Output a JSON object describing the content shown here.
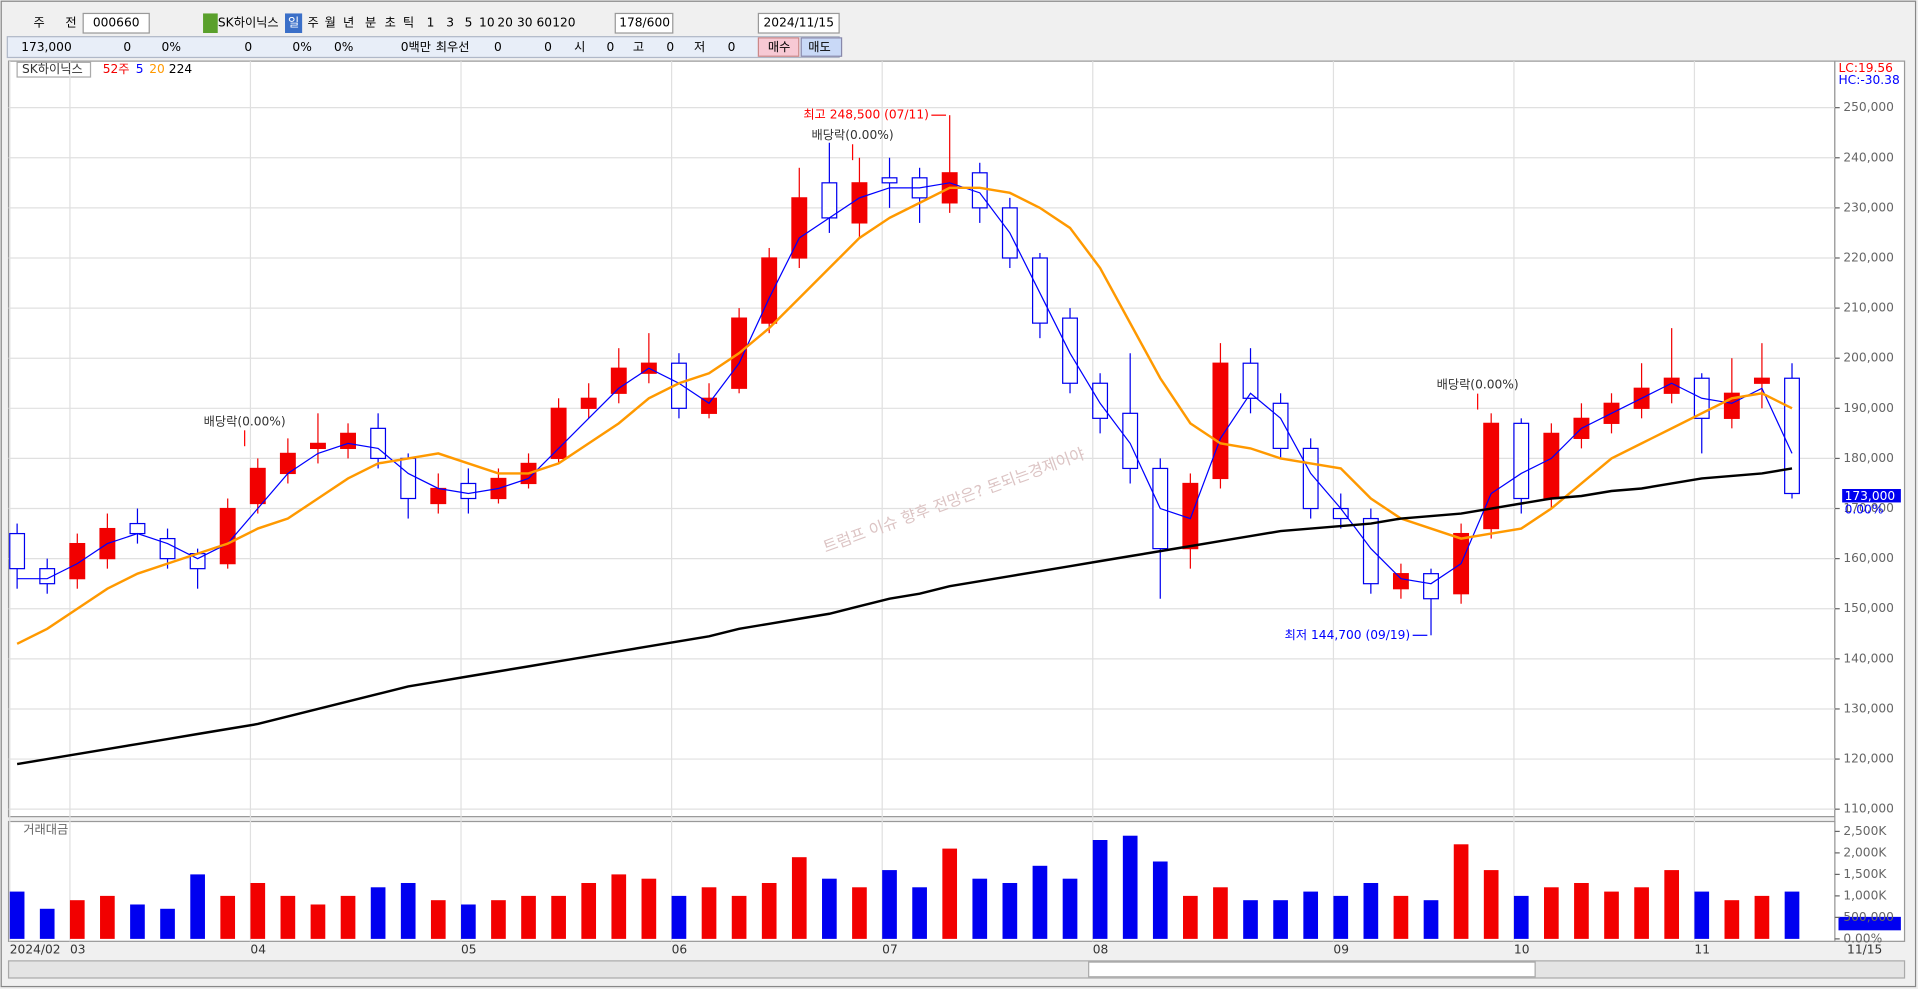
{
  "toolbar": {
    "row1": [
      "주",
      "전",
      "000660",
      "SK하이닉스",
      "일",
      "주",
      "월",
      "년",
      "분",
      "초",
      "틱",
      "1",
      "3",
      "5",
      "10",
      "20",
      "30",
      "60",
      "120",
      "178/600",
      "2024/11/15"
    ],
    "row2": [
      "173,000",
      "0",
      "0%",
      "0",
      "0%",
      "0%",
      "0백만",
      "최우선",
      "0",
      "0",
      "시",
      "0",
      "고",
      "0",
      "저",
      "0",
      "매수",
      "매도"
    ]
  },
  "chart_data": [
    {
      "type": "candlestick",
      "legend_title": "SK하이닉스",
      "legend_period": "52주",
      "categories": [
        "2024/02",
        null,
        "03",
        null,
        null,
        null,
        null,
        null,
        "04",
        null,
        null,
        null,
        null,
        null,
        null,
        "05",
        null,
        null,
        null,
        null,
        null,
        null,
        "06",
        null,
        null,
        null,
        null,
        null,
        null,
        "07",
        null,
        null,
        null,
        null,
        null,
        null,
        "08",
        null,
        null,
        null,
        null,
        null,
        null,
        null,
        "09",
        null,
        null,
        null,
        null,
        null,
        "10",
        null,
        null,
        null,
        null,
        null,
        "11",
        null,
        null,
        null
      ],
      "open": [
        165000,
        158000,
        156000,
        160000,
        167000,
        164000,
        161000,
        159000,
        171000,
        177000,
        182000,
        182000,
        186000,
        180000,
        171000,
        175000,
        172000,
        175000,
        180000,
        190000,
        193000,
        197000,
        199000,
        189000,
        194000,
        207000,
        220000,
        235000,
        227000,
        236000,
        236000,
        231000,
        237000,
        230000,
        220000,
        208000,
        195000,
        189000,
        178000,
        162000,
        176000,
        199000,
        191000,
        182000,
        170000,
        168000,
        154000,
        157000,
        153000,
        166000,
        187000,
        172000,
        184000,
        187000,
        190000,
        193000,
        196000,
        188000,
        195000,
        196000
      ],
      "high": [
        167000,
        160000,
        165000,
        169000,
        170000,
        166000,
        162000,
        172000,
        180000,
        184000,
        189000,
        187000,
        189000,
        181000,
        177000,
        178000,
        178000,
        181000,
        192000,
        195000,
        202000,
        205000,
        201000,
        195000,
        210000,
        222000,
        238000,
        243000,
        240000,
        240000,
        238000,
        248500,
        239000,
        232000,
        221000,
        210000,
        197000,
        201000,
        180000,
        177000,
        203000,
        202000,
        193000,
        184000,
        173000,
        170000,
        159000,
        158000,
        167000,
        189000,
        188000,
        187000,
        191000,
        193000,
        199000,
        206000,
        197000,
        200000,
        203000,
        199000
      ],
      "low": [
        154000,
        153000,
        154000,
        158000,
        163000,
        158000,
        154000,
        158000,
        169000,
        175000,
        179000,
        180000,
        178000,
        168000,
        169000,
        169000,
        171000,
        174000,
        179000,
        188000,
        191000,
        195000,
        188000,
        188000,
        193000,
        205000,
        218000,
        225000,
        224000,
        230000,
        227000,
        229000,
        227000,
        218000,
        204000,
        193000,
        185000,
        175000,
        152000,
        158000,
        174000,
        189000,
        180000,
        168000,
        166000,
        153000,
        152000,
        144700,
        151000,
        164000,
        169000,
        170000,
        182000,
        185000,
        188000,
        191000,
        181000,
        186000,
        190000,
        172000
      ],
      "close": [
        158000,
        155000,
        163000,
        166000,
        165000,
        160000,
        158000,
        170000,
        178000,
        181000,
        183000,
        185000,
        180000,
        172000,
        174000,
        172000,
        176000,
        179000,
        190000,
        192000,
        198000,
        199000,
        190000,
        192000,
        208000,
        220000,
        232000,
        228000,
        235000,
        235000,
        232000,
        237000,
        230000,
        220000,
        207000,
        195000,
        188000,
        178000,
        162000,
        175000,
        199000,
        192000,
        182000,
        170000,
        168000,
        155000,
        157000,
        152000,
        165000,
        187000,
        172000,
        185000,
        188000,
        191000,
        194000,
        196000,
        188000,
        193000,
        196000,
        173000
      ],
      "up_color": "#f20000",
      "down_color": "#0000f0",
      "series": [
        {
          "name": "5",
          "color": "#0000ff",
          "values": [
            156000,
            156000,
            159000,
            163000,
            165000,
            163000,
            160000,
            163000,
            170000,
            177000,
            181000,
            183000,
            182000,
            177000,
            174000,
            173000,
            174000,
            176000,
            182000,
            188000,
            194000,
            198000,
            195000,
            191000,
            199000,
            212000,
            224000,
            228000,
            232000,
            234000,
            234000,
            235000,
            233000,
            225000,
            213000,
            201000,
            191000,
            183000,
            170000,
            168000,
            184000,
            193000,
            188000,
            177000,
            170000,
            162000,
            156000,
            155000,
            159000,
            173000,
            177000,
            180000,
            186000,
            189000,
            192000,
            195000,
            192000,
            191000,
            194000,
            181000
          ]
        },
        {
          "name": "20",
          "color": "#ff9900",
          "values": [
            143000,
            146000,
            150000,
            154000,
            157000,
            159000,
            161000,
            163000,
            166000,
            168000,
            172000,
            176000,
            179000,
            180000,
            181000,
            179000,
            177000,
            177000,
            179000,
            183000,
            187000,
            192000,
            195000,
            197000,
            201000,
            206000,
            212000,
            218000,
            224000,
            228000,
            231000,
            234000,
            234000,
            233000,
            230000,
            226000,
            218000,
            207000,
            196000,
            187000,
            183000,
            182000,
            180000,
            179000,
            178000,
            172000,
            168000,
            166000,
            164000,
            165000,
            166000,
            170000,
            175000,
            180000,
            183000,
            186000,
            189000,
            192000,
            193000,
            190000
          ]
        },
        {
          "name": "224",
          "color": "#000000",
          "values": [
            119000,
            120000,
            121000,
            122000,
            123000,
            124000,
            125000,
            126000,
            127000,
            128500,
            130000,
            131500,
            133000,
            134500,
            135500,
            136500,
            137500,
            138500,
            139500,
            140500,
            141500,
            142500,
            143500,
            144500,
            146000,
            147000,
            148000,
            149000,
            150500,
            152000,
            153000,
            154500,
            155500,
            156500,
            157500,
            158500,
            159500,
            160500,
            161500,
            162500,
            163500,
            164500,
            165500,
            166000,
            166500,
            167000,
            168000,
            168500,
            169000,
            170000,
            171000,
            172000,
            172500,
            173500,
            174000,
            175000,
            176000,
            176500,
            177000,
            178000
          ]
        }
      ],
      "ylim": [
        109000,
        258800
      ],
      "yticks": [
        {
          "value": 110000,
          "label": "110,000"
        },
        {
          "value": 120000,
          "label": "120,000"
        },
        {
          "value": 130000,
          "label": "130,000"
        },
        {
          "value": 140000,
          "label": "140,000"
        },
        {
          "value": 150000,
          "label": "150,000"
        },
        {
          "value": 160000,
          "label": "160,000"
        },
        {
          "value": 170000,
          "label": "170,000"
        },
        {
          "value": 180000,
          "label": "180,000"
        },
        {
          "value": 190000,
          "label": "190,000"
        },
        {
          "value": 200000,
          "label": "200,000"
        },
        {
          "value": 210000,
          "label": "210,000"
        },
        {
          "value": 220000,
          "label": "220,000"
        },
        {
          "value": 230000,
          "label": "230,000"
        },
        {
          "value": 240000,
          "label": "240,000"
        },
        {
          "value": 250000,
          "label": "250,000"
        }
      ],
      "grid": true,
      "high_label": "최고 248,500 (07/11)",
      "low_label": "최저 144,700 (09/19)",
      "ex_dividend": [
        "배당락(0.00%)",
        "배당락(0.00%)",
        "배당락(0.00%)"
      ],
      "watermark": "트럼프 이슈 향후 전망은? 돈되는경제이야",
      "lc_label": "LC:19.56",
      "hc_label": "HC:-30.38",
      "last_price_label": "173,000",
      "last_change_label": "0.00%",
      "last_date_label": "11/15"
    },
    {
      "type": "bar",
      "title": "거래대금",
      "values": [
        1100000,
        700000,
        900000,
        1000000,
        800000,
        700000,
        1500000,
        1000000,
        1300000,
        1000000,
        800000,
        1000000,
        1200000,
        1300000,
        900000,
        800000,
        900000,
        1000000,
        1000000,
        1300000,
        1500000,
        1400000,
        1000000,
        1200000,
        1000000,
        1300000,
        1900000,
        1400000,
        1200000,
        1600000,
        1200000,
        2100000,
        1400000,
        1300000,
        1700000,
        1400000,
        2300000,
        2400000,
        1800000,
        1000000,
        1200000,
        900000,
        900000,
        1100000,
        1000000,
        1300000,
        1000000,
        900000,
        2200000,
        1600000,
        1000000,
        1200000,
        1300000,
        1100000,
        1200000,
        1600000,
        1100000,
        900000,
        1000000,
        1100000
      ],
      "ylim": [
        0,
        2730000
      ],
      "yticks": [
        {
          "value": 0,
          "label": "0.00%"
        },
        {
          "value": 500000,
          "label": "500,000"
        },
        {
          "value": 1000000,
          "label": "1,000K"
        },
        {
          "value": 1500000,
          "label": "1,500K"
        },
        {
          "value": 2000000,
          "label": "2,000K"
        },
        {
          "value": 2500000,
          "label": "2,500K"
        }
      ]
    }
  ]
}
